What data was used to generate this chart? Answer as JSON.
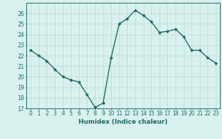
{
  "x": [
    0,
    1,
    2,
    3,
    4,
    5,
    6,
    7,
    8,
    9,
    10,
    11,
    12,
    13,
    14,
    15,
    16,
    17,
    18,
    19,
    20,
    21,
    22,
    23
  ],
  "y": [
    22.5,
    22.0,
    21.5,
    20.7,
    20.0,
    19.7,
    19.5,
    18.3,
    17.1,
    17.5,
    21.8,
    25.0,
    25.5,
    26.3,
    25.8,
    25.2,
    24.2,
    24.3,
    24.5,
    23.8,
    22.5,
    22.5,
    21.8,
    21.3
  ],
  "line_color": "#1a6b60",
  "marker": "D",
  "marker_size": 2,
  "bg_color": "#d8f0ee",
  "grid_color": "#b8d8d5",
  "axis_color": "#1a6b60",
  "text_color": "#1a6b60",
  "xlabel": "Humidex (Indice chaleur)",
  "ylim": [
    17,
    27
  ],
  "xlim": [
    -0.5,
    23.5
  ],
  "yticks": [
    17,
    18,
    19,
    20,
    21,
    22,
    23,
    24,
    25,
    26
  ],
  "xticks": [
    0,
    1,
    2,
    3,
    4,
    5,
    6,
    7,
    8,
    9,
    10,
    11,
    12,
    13,
    14,
    15,
    16,
    17,
    18,
    19,
    20,
    21,
    22,
    23
  ],
  "xlabel_fontsize": 6.5,
  "tick_fontsize": 5.5,
  "line_width": 1.0
}
